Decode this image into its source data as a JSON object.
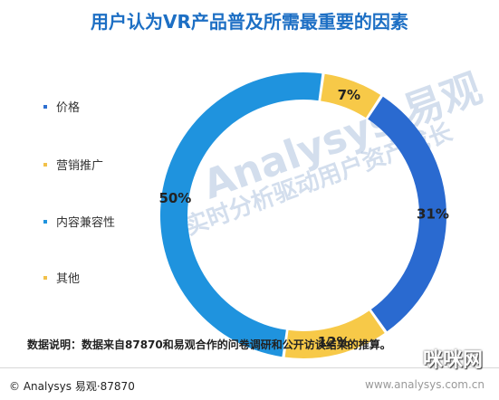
{
  "title": "用户认为VR产品普及所需最重要的因素",
  "legend": [
    {
      "label": "价格",
      "color": "#2e6fd0"
    },
    {
      "label": "营销推广",
      "color": "#f2c14a"
    },
    {
      "label": "内容兼容性",
      "color": "#1f93de"
    },
    {
      "label": "其他",
      "color": "#f2c14a"
    }
  ],
  "chart_data": {
    "type": "pie",
    "donut": true,
    "title": "用户认为VR产品普及所需最重要的因素",
    "slices": [
      {
        "label": "其他",
        "value": 7,
        "text": "7%",
        "color": "#f7c948"
      },
      {
        "label": "价格",
        "value": 31,
        "text": "31%",
        "color": "#2a6ad0"
      },
      {
        "label": "营销推广",
        "value": 12,
        "text": "12%",
        "color": "#f7c948"
      },
      {
        "label": "内容兼容性",
        "value": 50,
        "text": "50%",
        "color": "#1f93de"
      }
    ]
  },
  "note": "数据说明：数据来自87870和易观合作的问卷调研和公开访谈结果的推算。",
  "footer": {
    "copyright": "© Analysys 易观·87870"
  },
  "watermark": {
    "brand": "Analysys 易观",
    "slogan": "实时分析驱动用户资产成长",
    "site": "咪咪网",
    "url": "www.analysys.com.cn"
  }
}
